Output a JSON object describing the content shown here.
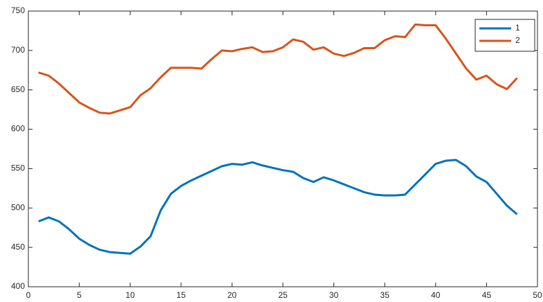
{
  "chart_data": {
    "type": "line",
    "x": [
      1,
      2,
      3,
      4,
      5,
      6,
      7,
      8,
      9,
      10,
      11,
      12,
      13,
      14,
      15,
      16,
      17,
      18,
      19,
      20,
      21,
      22,
      23,
      24,
      25,
      26,
      27,
      28,
      29,
      30,
      31,
      32,
      33,
      34,
      35,
      36,
      37,
      38,
      39,
      40,
      41,
      42,
      43,
      44,
      45,
      46,
      47,
      48
    ],
    "series": [
      {
        "name": "1",
        "color": "#0072bd",
        "values": [
          483,
          488,
          483,
          473,
          461,
          453,
          447,
          444,
          443,
          442,
          451,
          464,
          497,
          518,
          528,
          535,
          541,
          547,
          553,
          556,
          555,
          558,
          554,
          551,
          548,
          546,
          538,
          533,
          539,
          535,
          530,
          525,
          520,
          517,
          516,
          516,
          517,
          530,
          543,
          556,
          560,
          561,
          553,
          540,
          533,
          518,
          503,
          492
        ]
      },
      {
        "name": "2",
        "color": "#d95319",
        "values": [
          672,
          668,
          658,
          646,
          634,
          627,
          621,
          620,
          624,
          628,
          643,
          652,
          666,
          678,
          678,
          678,
          677,
          689,
          700,
          699,
          702,
          704,
          698,
          699,
          704,
          714,
          711,
          701,
          704,
          696,
          693,
          697,
          703,
          703,
          713,
          718,
          717,
          733,
          732,
          732,
          715,
          696,
          677,
          663,
          668,
          657,
          651,
          665
        ]
      }
    ],
    "xlim": [
      0,
      50
    ],
    "xticks": [
      0,
      5,
      10,
      15,
      20,
      25,
      30,
      35,
      40,
      45,
      50
    ],
    "ylim": [
      400,
      750
    ],
    "yticks": [
      400,
      450,
      500,
      550,
      600,
      650,
      700,
      750
    ],
    "grid": false,
    "legend": "northeast"
  }
}
